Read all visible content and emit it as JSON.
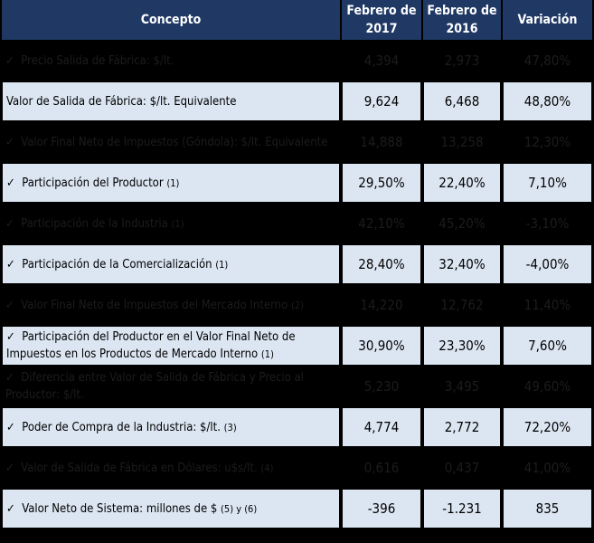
{
  "table": {
    "header": [
      "Concepto",
      "Febrero de 2017",
      "Febrero de 2016",
      "Variación"
    ],
    "rows": [
      {
        "concept": "Precio Salida de Fábrica: $/lt.",
        "note": "",
        "cells": [
          "4,394",
          "2,973",
          "47,80%"
        ]
      },
      {
        "concept": "Valor de Salida de Fábrica: $/lt. Equivalente",
        "note": "",
        "cells": [
          "9,624",
          "6,468",
          "48,80%"
        ]
      },
      {
        "concept": "Valor Final Neto de Impuestos (Góndola): $/lt. Equivalente",
        "note": "",
        "cells": [
          "14,888",
          "13,258",
          "12,30%"
        ]
      },
      {
        "concept": "Participación del Productor",
        "note": "(1)",
        "cells": [
          "29,50%",
          "22,40%",
          "7,10%"
        ]
      },
      {
        "concept": "Participación de la Industria",
        "note": "(1)",
        "cells": [
          "42,10%",
          "45,20%",
          "-3,10%"
        ]
      },
      {
        "concept": "Participación de la Comercialización",
        "note": "(1)",
        "cells": [
          "28,40%",
          "32,40%",
          "-4,00%"
        ]
      },
      {
        "concept": "Valor Final Neto de Impuestos del Mercado Interno",
        "note": "(2)",
        "cells": [
          "14,220",
          "12,762",
          "11,40%"
        ]
      },
      {
        "concept": "Participación del Productor en el Valor Final Neto de Impuestos en los Productos de  Mercado Interno",
        "note": "(1)",
        "cells": [
          "30,90%",
          "23,30%",
          "7,60%"
        ]
      },
      {
        "concept": "Diferencia entre Valor de Salida de Fábrica y Precio al Productor: $/lt.",
        "note": "",
        "cells": [
          "5,230",
          "3,495",
          "49,60%"
        ]
      },
      {
        "concept": "Poder de Compra de la Industria: $/lt.",
        "note": "(3)",
        "cells": [
          "4,774",
          "2,772",
          "72,20%"
        ]
      },
      {
        "concept": "Valor de Salida de Fábrica en Dólares: u$s/lt.",
        "note": "(4)",
        "cells": [
          "0,616",
          "0,437",
          "41,00%"
        ]
      },
      {
        "concept": "Valor Neto de Sistema: millones de $",
        "note": "(5) y (6)",
        "cells": [
          "-396",
          "-1.231",
          "835"
        ]
      }
    ]
  }
}
